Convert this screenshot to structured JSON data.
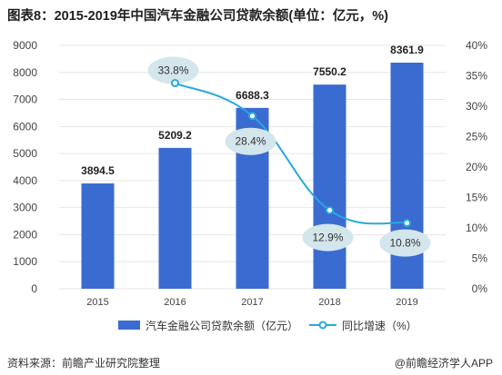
{
  "title": "图表8：2015-2019年中国汽车金融公司贷款余额(单位：亿元，%)",
  "footer": {
    "source": "资料来源：前瞻产业研究院整理",
    "credit": "@前瞻经济学人APP"
  },
  "colors": {
    "bar": "#3a6bd1",
    "line": "#29a8e0",
    "bubble": "#d3e6ec",
    "grid": "#e6e6e6"
  },
  "chart_data": {
    "type": "bar",
    "categories": [
      "2015",
      "2016",
      "2017",
      "2018",
      "2019"
    ],
    "series": [
      {
        "name": "汽车金融公司贷款余额（亿元）",
        "type": "bar",
        "axis": "left",
        "values": [
          3894.5,
          5209.2,
          6688.3,
          7550.2,
          8361.9
        ],
        "labels": [
          "3894.5",
          "5209.2",
          "6688.3",
          "7550.2",
          "8361.9"
        ]
      },
      {
        "name": "同比增速（%）",
        "type": "line",
        "axis": "right",
        "x": [
          "2016",
          "2017",
          "2018",
          "2019"
        ],
        "values": [
          33.8,
          28.4,
          12.9,
          10.8
        ],
        "labels": [
          "33.8%",
          "28.4%",
          "12.9%",
          "10.8%"
        ]
      }
    ],
    "y_left": {
      "min": 0,
      "max": 9000,
      "step": 1000,
      "ticks": [
        "0",
        "1000",
        "2000",
        "3000",
        "4000",
        "5000",
        "6000",
        "7000",
        "8000",
        "9000"
      ]
    },
    "y_right": {
      "min": 0,
      "max": 40,
      "step": 5,
      "ticks": [
        "0%",
        "5%",
        "10%",
        "15%",
        "20%",
        "25%",
        "30%",
        "35%",
        "40%"
      ]
    },
    "grid": true,
    "legend_position": "bottom"
  }
}
